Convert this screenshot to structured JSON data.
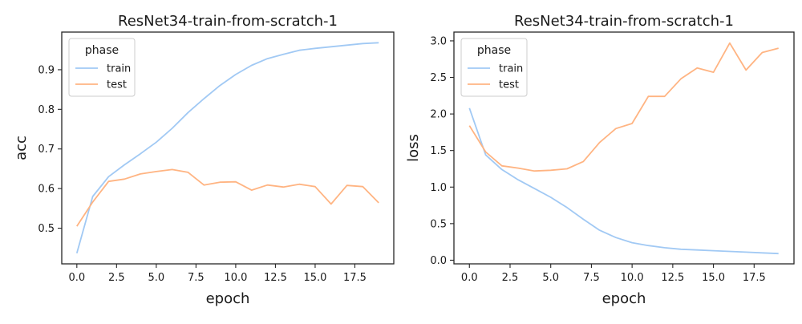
{
  "colors": {
    "train": "#a1c9f4",
    "test": "#ffb482",
    "axis": "#262626",
    "background": "#ffffff",
    "legend_border": "#cccccc"
  },
  "chart_data": [
    {
      "type": "line",
      "title": "ResNet34-train-from-scratch-1",
      "xlabel": "epoch",
      "ylabel": "acc",
      "xlim": [
        -0.95,
        19.95
      ],
      "ylim": [
        0.41,
        0.995
      ],
      "xticks": [
        0.0,
        2.5,
        5.0,
        7.5,
        10.0,
        12.5,
        15.0,
        17.5
      ],
      "yticks": [
        0.5,
        0.6,
        0.7,
        0.8,
        0.9
      ],
      "grid": false,
      "legend": {
        "title": "phase",
        "placement": "top-left"
      },
      "x": [
        0,
        1,
        2,
        3,
        4,
        5,
        6,
        7,
        8,
        9,
        10,
        11,
        12,
        13,
        14,
        15,
        16,
        17,
        18,
        19
      ],
      "series": [
        {
          "name": "train",
          "color": "#a1c9f4",
          "values": [
            0.437,
            0.58,
            0.63,
            0.66,
            0.688,
            0.717,
            0.752,
            0.792,
            0.827,
            0.86,
            0.888,
            0.911,
            0.928,
            0.939,
            0.949,
            0.954,
            0.958,
            0.962,
            0.966,
            0.968
          ]
        },
        {
          "name": "test",
          "color": "#ffb482",
          "values": [
            0.505,
            0.566,
            0.618,
            0.624,
            0.637,
            0.643,
            0.648,
            0.641,
            0.609,
            0.616,
            0.617,
            0.596,
            0.609,
            0.604,
            0.611,
            0.605,
            0.561,
            0.608,
            0.605,
            0.564
          ]
        }
      ]
    },
    {
      "type": "line",
      "title": "ResNet34-train-from-scratch-1",
      "xlabel": "epoch",
      "ylabel": "loss",
      "xlim": [
        -0.95,
        19.95
      ],
      "ylim": [
        -0.05,
        3.12
      ],
      "xticks": [
        0.0,
        2.5,
        5.0,
        7.5,
        10.0,
        12.5,
        15.0,
        17.5
      ],
      "yticks": [
        0.0,
        0.5,
        1.0,
        1.5,
        2.0,
        2.5,
        3.0
      ],
      "grid": false,
      "legend": {
        "title": "phase",
        "placement": "top-left"
      },
      "x": [
        0,
        1,
        2,
        3,
        4,
        5,
        6,
        7,
        8,
        9,
        10,
        11,
        12,
        13,
        14,
        15,
        16,
        17,
        18,
        19
      ],
      "series": [
        {
          "name": "train",
          "color": "#a1c9f4",
          "values": [
            2.08,
            1.44,
            1.24,
            1.1,
            0.98,
            0.86,
            0.72,
            0.56,
            0.41,
            0.31,
            0.24,
            0.2,
            0.17,
            0.15,
            0.14,
            0.13,
            0.12,
            0.11,
            0.1,
            0.09
          ]
        },
        {
          "name": "test",
          "color": "#ffb482",
          "values": [
            1.84,
            1.48,
            1.29,
            1.26,
            1.22,
            1.23,
            1.25,
            1.35,
            1.61,
            1.8,
            1.87,
            2.24,
            2.24,
            2.48,
            2.63,
            2.57,
            2.97,
            2.6,
            2.84,
            2.9
          ]
        }
      ]
    }
  ]
}
